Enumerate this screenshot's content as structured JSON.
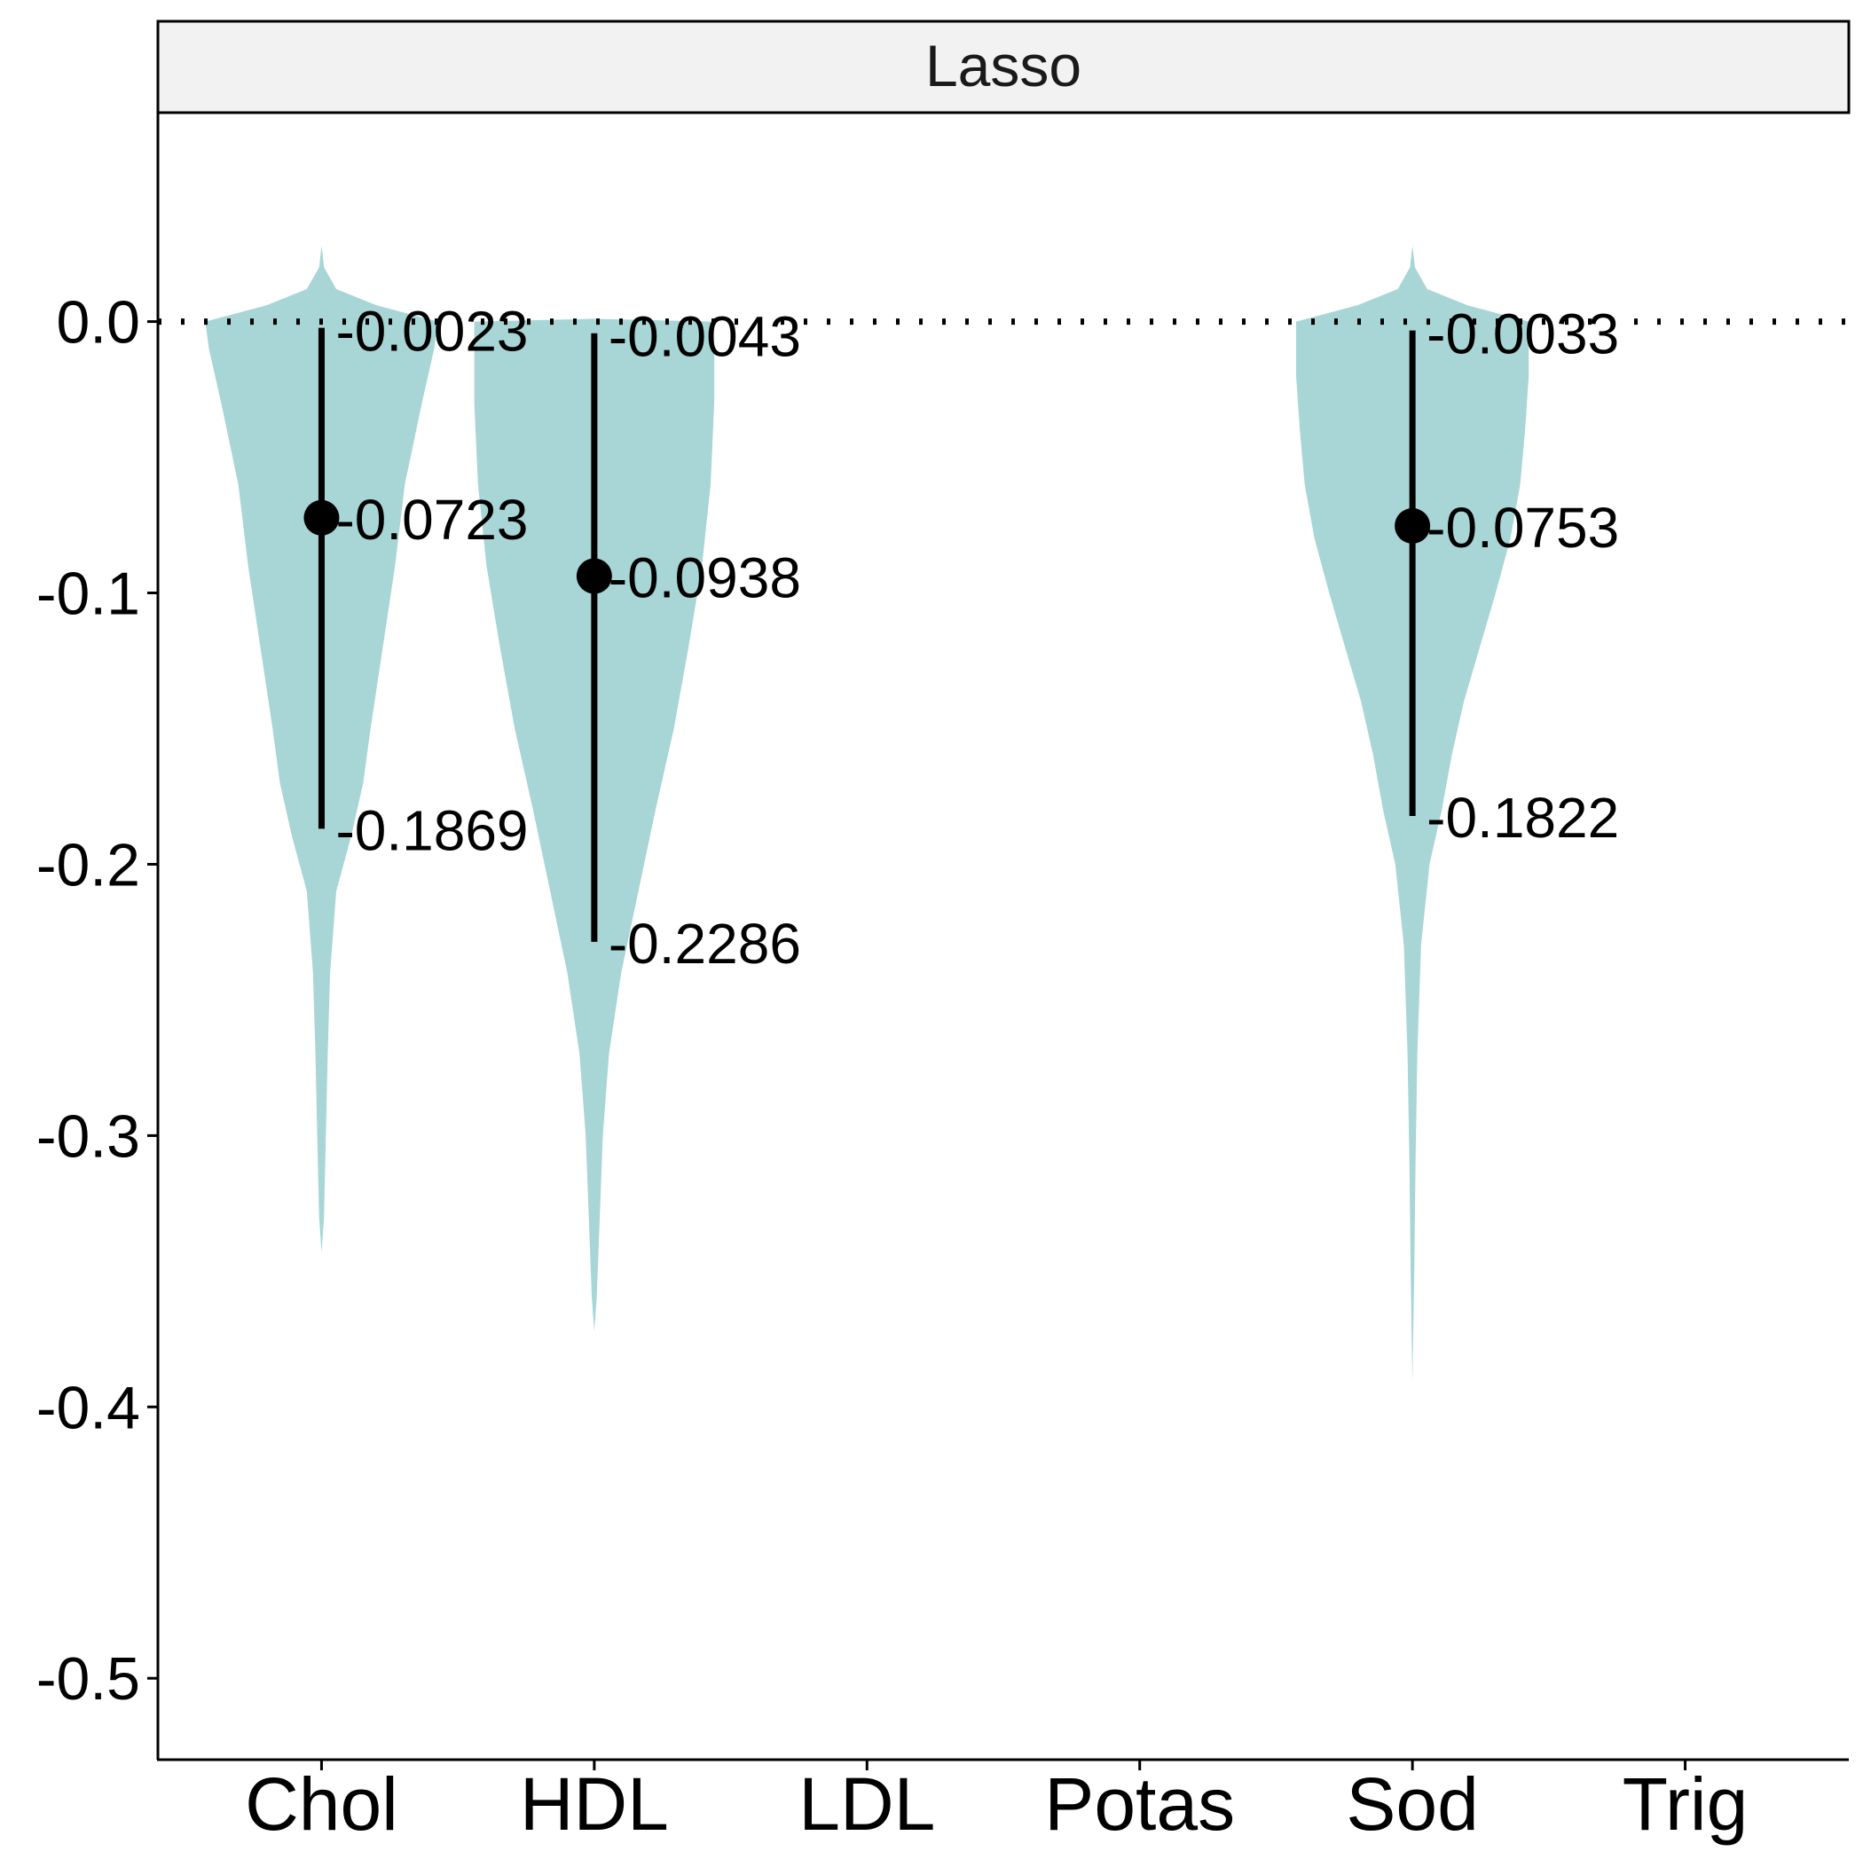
{
  "chart_data": {
    "type": "violin",
    "facet_label": "Lasso",
    "categories": [
      "Chol",
      "HDL",
      "LDL",
      "Potas",
      "Sod",
      "Trig"
    ],
    "y_ticks": [
      "0.0",
      "-0.1",
      "-0.2",
      "-0.3",
      "-0.4",
      "-0.5"
    ],
    "y_tick_values": [
      0.0,
      -0.1,
      -0.2,
      -0.3,
      -0.4,
      -0.5
    ],
    "ylim": [
      -0.53,
      0.077
    ],
    "reference_line": 0.0,
    "violin_color": "#a8d5d5",
    "violins": [
      {
        "category": "Chol",
        "upper": -0.0023,
        "upper_label": "-0.0023",
        "median": -0.0723,
        "median_label": "-0.0723",
        "lower": -0.1869,
        "lower_label": "-0.1869",
        "profile": [
          [
            0.028,
            0.0
          ],
          [
            0.02,
            0.02
          ],
          [
            0.012,
            0.12
          ],
          [
            0.006,
            0.45
          ],
          [
            0.0,
            0.95
          ],
          [
            -0.01,
            0.92
          ],
          [
            -0.03,
            0.82
          ],
          [
            -0.06,
            0.68
          ],
          [
            -0.09,
            0.6
          ],
          [
            -0.12,
            0.5
          ],
          [
            -0.15,
            0.4
          ],
          [
            -0.17,
            0.34
          ],
          [
            -0.19,
            0.24
          ],
          [
            -0.21,
            0.12
          ],
          [
            -0.24,
            0.07
          ],
          [
            -0.27,
            0.05
          ],
          [
            -0.3,
            0.035
          ],
          [
            -0.33,
            0.02
          ],
          [
            -0.343,
            0.0
          ]
        ]
      },
      {
        "category": "HDL",
        "upper": -0.0043,
        "upper_label": "-0.0043",
        "median": -0.0938,
        "median_label": "-0.0938",
        "lower": -0.2286,
        "lower_label": "-0.2286",
        "profile": [
          [
            0.001,
            0.0
          ],
          [
            0.0,
            0.98
          ],
          [
            -0.03,
            0.98
          ],
          [
            -0.06,
            0.95
          ],
          [
            -0.09,
            0.88
          ],
          [
            -0.12,
            0.77
          ],
          [
            -0.15,
            0.65
          ],
          [
            -0.18,
            0.5
          ],
          [
            -0.21,
            0.36
          ],
          [
            -0.24,
            0.22
          ],
          [
            -0.27,
            0.12
          ],
          [
            -0.3,
            0.07
          ],
          [
            -0.33,
            0.045
          ],
          [
            -0.36,
            0.02
          ],
          [
            -0.372,
            0.0
          ]
        ]
      },
      {
        "category": "Sod",
        "upper": -0.0033,
        "upper_label": "-0.0033",
        "median": -0.0753,
        "median_label": "-0.0753",
        "lower": -0.1822,
        "lower_label": "-0.1822",
        "profile": [
          [
            0.028,
            0.0
          ],
          [
            0.02,
            0.02
          ],
          [
            0.012,
            0.12
          ],
          [
            0.006,
            0.45
          ],
          [
            0.0,
            0.95
          ],
          [
            -0.02,
            0.95
          ],
          [
            -0.04,
            0.92
          ],
          [
            -0.06,
            0.88
          ],
          [
            -0.08,
            0.8
          ],
          [
            -0.1,
            0.68
          ],
          [
            -0.12,
            0.55
          ],
          [
            -0.14,
            0.42
          ],
          [
            -0.16,
            0.32
          ],
          [
            -0.18,
            0.24
          ],
          [
            -0.2,
            0.14
          ],
          [
            -0.23,
            0.07
          ],
          [
            -0.27,
            0.04
          ],
          [
            -0.31,
            0.025
          ],
          [
            -0.35,
            0.015
          ],
          [
            -0.391,
            0.0
          ]
        ]
      }
    ],
    "grid": false,
    "xlabel": "",
    "ylabel": ""
  }
}
